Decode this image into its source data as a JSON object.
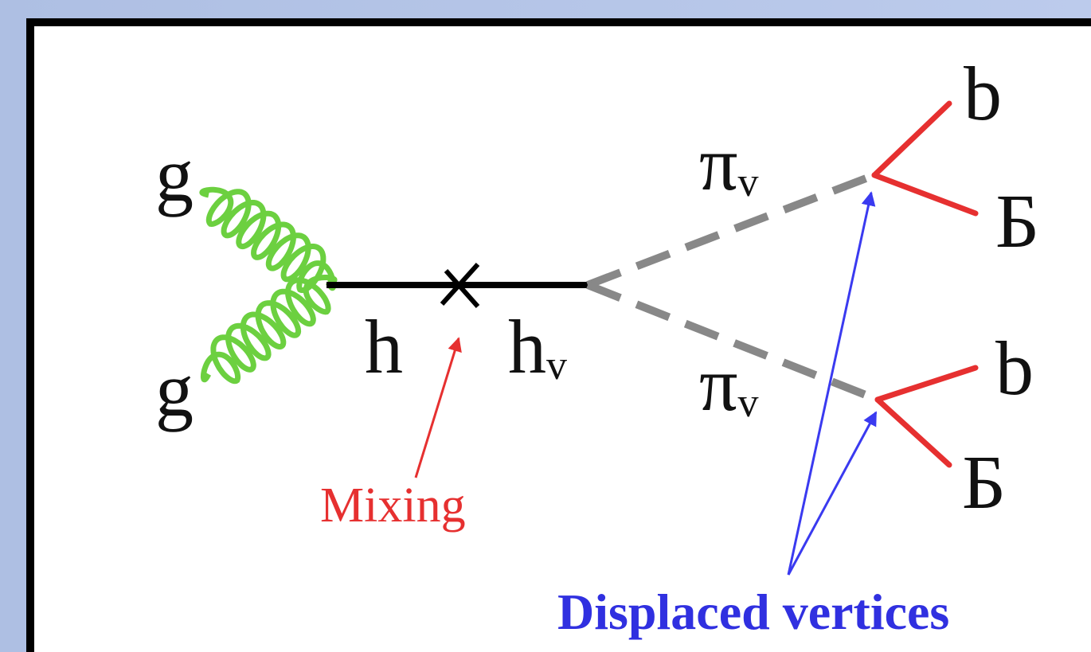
{
  "labels": {
    "gluon_top": "g",
    "gluon_bottom": "g",
    "higgs": "h",
    "hidden_higgs": {
      "symbol": "h",
      "subscript": "v"
    },
    "pion_top": {
      "symbol": "π",
      "subscript": "v"
    },
    "pion_bottom": {
      "symbol": "π",
      "subscript": "v"
    },
    "quark_top_1": "b",
    "quark_top_2": "Б",
    "quark_bottom_1": "b",
    "quark_bottom_2": "Б",
    "mixing": "Mixing",
    "displaced_vertices": "Displaced vertices"
  }
}
